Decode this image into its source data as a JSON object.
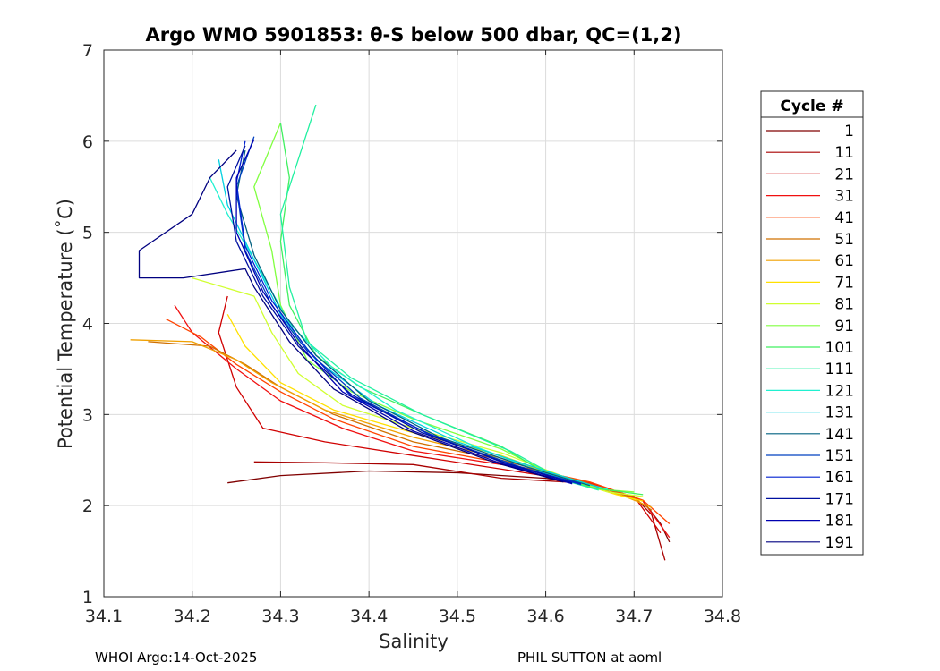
{
  "chart_data": {
    "type": "line",
    "title": "Argo WMO 5901853: θ-S below 500 dbar,  QC=(1,2)",
    "xlabel": "Salinity",
    "ylabel": "Potential Temperature (˚C)",
    "xlim": [
      34.1,
      34.8
    ],
    "ylim": [
      1,
      7
    ],
    "xticks": [
      "34.1",
      "34.2",
      "34.3",
      "34.4",
      "34.5",
      "34.6",
      "34.7",
      "34.8"
    ],
    "yticks": [
      "1",
      "2",
      "3",
      "4",
      "5",
      "6",
      "7"
    ],
    "grid": true,
    "legend": {
      "title": "Cycle #",
      "placement": "right",
      "entries": [
        {
          "label": "1",
          "color": "#800000"
        },
        {
          "label": "11",
          "color": "#a80000"
        },
        {
          "label": "21",
          "color": "#d00000"
        },
        {
          "label": "31",
          "color": "#f01010"
        },
        {
          "label": "41",
          "color": "#ff4400"
        },
        {
          "label": "51",
          "color": "#d07000"
        },
        {
          "label": "61",
          "color": "#f0a000"
        },
        {
          "label": "71",
          "color": "#ffe000"
        },
        {
          "label": "81",
          "color": "#d0ff30"
        },
        {
          "label": "91",
          "color": "#80ff40"
        },
        {
          "label": "101",
          "color": "#40f060"
        },
        {
          "label": "111",
          "color": "#20f0a0"
        },
        {
          "label": "121",
          "color": "#20f0d0"
        },
        {
          "label": "131",
          "color": "#00d0e0"
        },
        {
          "label": "141",
          "color": "#006080"
        },
        {
          "label": "151",
          "color": "#0040c0"
        },
        {
          "label": "161",
          "color": "#0020d0"
        },
        {
          "label": "171",
          "color": "#0010a0"
        },
        {
          "label": "181",
          "color": "#0000b0"
        },
        {
          "label": "191",
          "color": "#000080"
        }
      ]
    },
    "series": [
      {
        "name": "1",
        "color": "#800000",
        "points": [
          [
            34.74,
            1.6
          ],
          [
            34.73,
            1.8
          ],
          [
            34.71,
            2.05
          ],
          [
            34.66,
            2.22
          ],
          [
            34.6,
            2.3
          ],
          [
            34.5,
            2.36
          ],
          [
            34.4,
            2.38
          ],
          [
            34.3,
            2.33
          ],
          [
            34.24,
            2.25
          ]
        ]
      },
      {
        "name": "11",
        "color": "#a80000",
        "points": [
          [
            34.735,
            1.4
          ],
          [
            34.72,
            1.9
          ],
          [
            34.7,
            2.1
          ],
          [
            34.64,
            2.25
          ],
          [
            34.55,
            2.3
          ],
          [
            34.45,
            2.45
          ],
          [
            34.35,
            2.47
          ],
          [
            34.27,
            2.48
          ]
        ]
      },
      {
        "name": "21",
        "color": "#d00000",
        "points": [
          [
            34.73,
            1.7
          ],
          [
            34.7,
            2.1
          ],
          [
            34.63,
            2.28
          ],
          [
            34.55,
            2.4
          ],
          [
            34.45,
            2.55
          ],
          [
            34.35,
            2.7
          ],
          [
            34.28,
            2.85
          ],
          [
            34.25,
            3.3
          ],
          [
            34.23,
            3.9
          ],
          [
            34.24,
            4.3
          ]
        ]
      },
      {
        "name": "31",
        "color": "#f01010",
        "points": [
          [
            34.74,
            1.65
          ],
          [
            34.71,
            2.05
          ],
          [
            34.65,
            2.25
          ],
          [
            34.55,
            2.45
          ],
          [
            34.45,
            2.6
          ],
          [
            34.37,
            2.85
          ],
          [
            34.3,
            3.15
          ],
          [
            34.25,
            3.5
          ],
          [
            34.2,
            3.9
          ],
          [
            34.18,
            4.2
          ]
        ]
      },
      {
        "name": "41",
        "color": "#ff4400",
        "points": [
          [
            34.74,
            1.8
          ],
          [
            34.71,
            2.06
          ],
          [
            34.65,
            2.26
          ],
          [
            34.55,
            2.47
          ],
          [
            34.45,
            2.65
          ],
          [
            34.36,
            2.95
          ],
          [
            34.3,
            3.25
          ],
          [
            34.25,
            3.55
          ],
          [
            34.21,
            3.85
          ],
          [
            34.17,
            4.05
          ]
        ]
      },
      {
        "name": "51",
        "color": "#d07000",
        "points": [
          [
            34.72,
            1.95
          ],
          [
            34.7,
            2.08
          ],
          [
            34.64,
            2.27
          ],
          [
            34.55,
            2.5
          ],
          [
            34.45,
            2.7
          ],
          [
            34.36,
            3.0
          ],
          [
            34.3,
            3.3
          ],
          [
            34.26,
            3.55
          ],
          [
            34.22,
            3.75
          ],
          [
            34.15,
            3.8
          ]
        ]
      },
      {
        "name": "61",
        "color": "#f0a000",
        "points": [
          [
            34.72,
            1.98
          ],
          [
            34.69,
            2.1
          ],
          [
            34.63,
            2.28
          ],
          [
            34.55,
            2.52
          ],
          [
            34.45,
            2.75
          ],
          [
            34.35,
            3.05
          ],
          [
            34.29,
            3.35
          ],
          [
            34.25,
            3.6
          ],
          [
            34.2,
            3.8
          ],
          [
            34.13,
            3.82
          ]
        ]
      },
      {
        "name": "71",
        "color": "#ffe000",
        "points": [
          [
            34.71,
            2.05
          ],
          [
            34.68,
            2.12
          ],
          [
            34.62,
            2.3
          ],
          [
            34.55,
            2.55
          ],
          [
            34.45,
            2.8
          ],
          [
            34.36,
            3.05
          ],
          [
            34.3,
            3.35
          ],
          [
            34.26,
            3.75
          ],
          [
            34.24,
            4.1
          ]
        ]
      },
      {
        "name": "81",
        "color": "#d0ff30",
        "points": [
          [
            34.71,
            2.1
          ],
          [
            34.67,
            2.15
          ],
          [
            34.62,
            2.32
          ],
          [
            34.55,
            2.58
          ],
          [
            34.45,
            2.85
          ],
          [
            34.37,
            3.1
          ],
          [
            34.32,
            3.45
          ],
          [
            34.29,
            3.9
          ],
          [
            34.27,
            4.3
          ],
          [
            34.2,
            4.5
          ]
        ]
      },
      {
        "name": "91",
        "color": "#80ff40",
        "points": [
          [
            34.7,
            2.15
          ],
          [
            34.66,
            2.18
          ],
          [
            34.61,
            2.33
          ],
          [
            34.55,
            2.62
          ],
          [
            34.45,
            2.95
          ],
          [
            34.38,
            3.25
          ],
          [
            34.33,
            3.6
          ],
          [
            34.3,
            4.2
          ],
          [
            34.29,
            4.8
          ],
          [
            34.27,
            5.5
          ],
          [
            34.3,
            6.2
          ]
        ]
      },
      {
        "name": "101",
        "color": "#40f060",
        "points": [
          [
            34.71,
            2.12
          ],
          [
            34.65,
            2.2
          ],
          [
            34.6,
            2.35
          ],
          [
            34.55,
            2.65
          ],
          [
            34.46,
            3.0
          ],
          [
            34.39,
            3.3
          ],
          [
            34.34,
            3.65
          ],
          [
            34.31,
            4.2
          ],
          [
            34.3,
            4.9
          ],
          [
            34.31,
            5.6
          ],
          [
            34.3,
            6.2
          ]
        ]
      },
      {
        "name": "111",
        "color": "#20f0a0",
        "points": [
          [
            34.66,
            2.17
          ],
          [
            34.62,
            2.28
          ],
          [
            34.56,
            2.6
          ],
          [
            34.46,
            3.0
          ],
          [
            34.38,
            3.4
          ],
          [
            34.33,
            3.8
          ],
          [
            34.31,
            4.4
          ],
          [
            34.3,
            5.2
          ],
          [
            34.32,
            5.8
          ],
          [
            34.34,
            6.4
          ]
        ]
      },
      {
        "name": "121",
        "color": "#20f0d0",
        "points": [
          [
            34.67,
            2.18
          ],
          [
            34.6,
            2.35
          ],
          [
            34.52,
            2.65
          ],
          [
            34.43,
            3.05
          ],
          [
            34.36,
            3.5
          ],
          [
            34.31,
            4.0
          ],
          [
            34.27,
            4.7
          ],
          [
            34.24,
            5.2
          ],
          [
            34.22,
            5.6
          ]
        ]
      },
      {
        "name": "131",
        "color": "#00d0e0",
        "points": [
          [
            34.66,
            2.2
          ],
          [
            34.6,
            2.38
          ],
          [
            34.5,
            2.7
          ],
          [
            34.41,
            3.1
          ],
          [
            34.34,
            3.6
          ],
          [
            34.3,
            4.1
          ],
          [
            34.27,
            4.7
          ],
          [
            34.24,
            5.3
          ],
          [
            34.23,
            5.8
          ]
        ]
      },
      {
        "name": "141",
        "color": "#006080",
        "points": [
          [
            34.65,
            2.22
          ],
          [
            34.58,
            2.42
          ],
          [
            34.48,
            2.75
          ],
          [
            34.4,
            3.15
          ],
          [
            34.34,
            3.65
          ],
          [
            34.3,
            4.15
          ],
          [
            34.27,
            4.75
          ],
          [
            34.25,
            5.4
          ],
          [
            34.26,
            5.9
          ]
        ]
      },
      {
        "name": "151",
        "color": "#0040c0",
        "points": [
          [
            34.64,
            2.23
          ],
          [
            34.57,
            2.43
          ],
          [
            34.47,
            2.77
          ],
          [
            34.39,
            3.18
          ],
          [
            34.33,
            3.7
          ],
          [
            34.29,
            4.2
          ],
          [
            34.26,
            4.8
          ],
          [
            34.25,
            5.5
          ],
          [
            34.27,
            6.05
          ]
        ]
      },
      {
        "name": "161",
        "color": "#0020d0",
        "points": [
          [
            34.64,
            2.24
          ],
          [
            34.56,
            2.44
          ],
          [
            34.47,
            2.78
          ],
          [
            34.38,
            3.2
          ],
          [
            34.33,
            3.72
          ],
          [
            34.29,
            4.25
          ],
          [
            34.26,
            4.85
          ],
          [
            34.25,
            5.55
          ],
          [
            34.26,
            6.0
          ]
        ]
      },
      {
        "name": "171",
        "color": "#0010a0",
        "points": [
          [
            34.63,
            2.25
          ],
          [
            34.56,
            2.45
          ],
          [
            34.46,
            2.8
          ],
          [
            34.38,
            3.22
          ],
          [
            34.32,
            3.75
          ],
          [
            34.28,
            4.3
          ],
          [
            34.25,
            4.9
          ],
          [
            34.24,
            5.5
          ],
          [
            34.26,
            5.95
          ]
        ]
      },
      {
        "name": "181",
        "color": "#0000b0",
        "points": [
          [
            34.63,
            2.24
          ],
          [
            34.55,
            2.46
          ],
          [
            34.45,
            2.82
          ],
          [
            34.37,
            3.25
          ],
          [
            34.32,
            3.78
          ],
          [
            34.28,
            4.35
          ],
          [
            34.25,
            5.0
          ],
          [
            34.25,
            5.6
          ],
          [
            34.27,
            6.02
          ]
        ]
      },
      {
        "name": "191",
        "color": "#000080",
        "points": [
          [
            34.62,
            2.26
          ],
          [
            34.54,
            2.48
          ],
          [
            34.44,
            2.84
          ],
          [
            34.36,
            3.28
          ],
          [
            34.31,
            3.8
          ],
          [
            34.27,
            4.4
          ],
          [
            34.26,
            4.6
          ],
          [
            34.19,
            4.5
          ],
          [
            34.14,
            4.5
          ],
          [
            34.14,
            4.8
          ],
          [
            34.2,
            5.2
          ],
          [
            34.22,
            5.6
          ],
          [
            34.25,
            5.9
          ]
        ]
      }
    ]
  },
  "footer": {
    "left": "WHOI Argo:14-Oct-2025",
    "right": "PHIL SUTTON at aoml"
  }
}
